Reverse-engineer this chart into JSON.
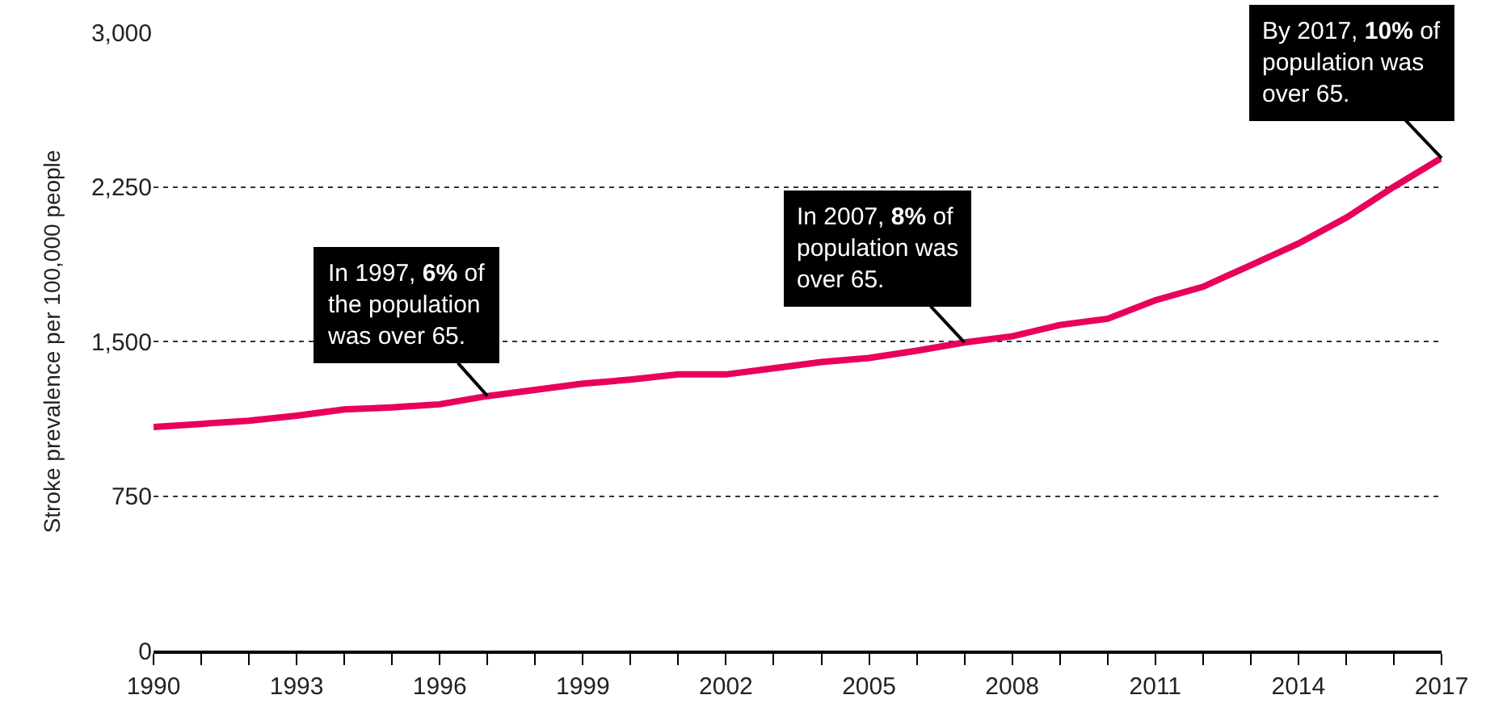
{
  "chart_data": {
    "type": "line",
    "ylabel": "Stroke prevalence per 100,000 people",
    "x": [
      1990,
      1991,
      1992,
      1993,
      1994,
      1995,
      1996,
      1997,
      1998,
      1999,
      2000,
      2001,
      2002,
      2003,
      2004,
      2005,
      2006,
      2007,
      2008,
      2009,
      2010,
      2011,
      2012,
      2013,
      2014,
      2015,
      2016,
      2017
    ],
    "series": [
      {
        "color": "#e8005a",
        "values": [
          1085,
          1100,
          1115,
          1140,
          1170,
          1180,
          1195,
          1235,
          1265,
          1295,
          1315,
          1340,
          1340,
          1370,
          1400,
          1420,
          1455,
          1495,
          1525,
          1580,
          1610,
          1700,
          1765,
          1870,
          1975,
          2100,
          2250,
          2390
        ]
      }
    ],
    "xlim": [
      1990,
      2017
    ],
    "xticks": [
      1990,
      {
        "value": 1991,
        "label": null
      },
      {
        "value": 1992,
        "label": null
      },
      1993,
      {
        "value": 1994,
        "label": null
      },
      {
        "value": 1995,
        "label": null
      },
      1996,
      {
        "value": 1997,
        "label": null
      },
      {
        "value": 1998,
        "label": null
      },
      1999,
      {
        "value": 2000,
        "label": null
      },
      {
        "value": 2001,
        "label": null
      },
      2002,
      {
        "value": 2003,
        "label": null
      },
      {
        "value": 2004,
        "label": null
      },
      2005,
      {
        "value": 2006,
        "label": null
      },
      {
        "value": 2007,
        "label": null
      },
      2008,
      {
        "value": 2009,
        "label": null
      },
      {
        "value": 2010,
        "label": null
      },
      2011,
      {
        "value": 2012,
        "label": null
      },
      {
        "value": 2013,
        "label": null
      },
      2014,
      {
        "value": 2015,
        "label": null
      },
      {
        "value": 2016,
        "label": null
      },
      2017
    ],
    "ylim": [
      0,
      3000
    ],
    "yticks": [
      0,
      {
        "value": 750,
        "label": "750"
      },
      {
        "value": 1500,
        "label": "1,500"
      },
      {
        "value": 2250,
        "label": "2,250"
      },
      {
        "value": 3000,
        "label": "3,000"
      }
    ],
    "grid": "y",
    "legend": false,
    "marker": "none",
    "line_style": "solid",
    "annotations": [
      {
        "text": "In 1997, 6% of\nthe population\nwas over 65.",
        "x": 1997,
        "y": 1235
      },
      {
        "text": "In 2007, 8% of\npopulation was\nover 65.",
        "x": 2007,
        "y": 1495
      },
      {
        "text": "By 2017, 10% of\npopulation was\nover 65.",
        "x": 2017,
        "y": 2390
      }
    ]
  }
}
